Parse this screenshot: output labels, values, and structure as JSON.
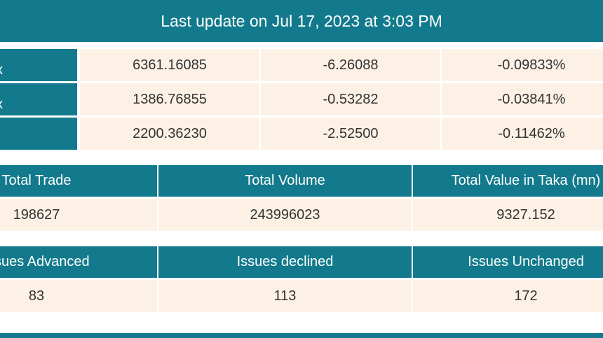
{
  "header": {
    "title": "Last update on Jul 17, 2023 at 3:03 PM"
  },
  "indices": {
    "rows": [
      {
        "label": "x",
        "values": [
          "6361.16085",
          "-6.26088",
          "-0.09833%"
        ]
      },
      {
        "label": "x",
        "values": [
          "1386.76855",
          "-0.53282",
          "-0.03841%"
        ]
      },
      {
        "values": [
          "2200.36230",
          "-2.52500",
          "-0.11462%"
        ]
      }
    ]
  },
  "trade_table": {
    "headers": [
      "Total Trade",
      "Total Volume",
      "Total Value in Taka (mn)"
    ],
    "row": [
      "198627",
      "243996023",
      "9327.152"
    ]
  },
  "issues_table": {
    "headers": [
      "Issues Advanced",
      "Issues declined",
      "Issues Unchanged"
    ],
    "row": [
      "83",
      "113",
      "172"
    ]
  }
}
